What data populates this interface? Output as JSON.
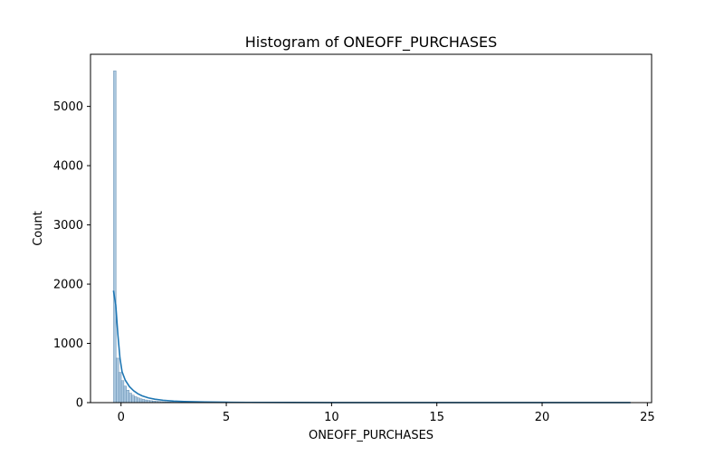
{
  "chart_data": {
    "type": "histogram",
    "title": "Histogram of ONEOFF_PURCHASES",
    "xlabel": "ONEOFF_PURCHASES",
    "ylabel": "Count",
    "xlim": [
      -1.45,
      25.2
    ],
    "ylim": [
      0,
      5880
    ],
    "xticks": [
      0,
      5,
      10,
      15,
      20,
      25
    ],
    "yticks": [
      0,
      1000,
      2000,
      3000,
      4000,
      5000
    ],
    "grid": false,
    "legend": "none",
    "colors": {
      "bar_fill": "#a9c6de",
      "bar_edge": "#4f7ea6",
      "kde_line": "#1f77b4"
    },
    "bins": {
      "start": -0.357,
      "width": 0.1235,
      "counts": [
        5600,
        750,
        510,
        370,
        280,
        210,
        160,
        125,
        100,
        80,
        65,
        55,
        45,
        38,
        32,
        27,
        23,
        20,
        17,
        15,
        13,
        11,
        10,
        9,
        8,
        7,
        6,
        5,
        5,
        4,
        4,
        3,
        3,
        3,
        2,
        2,
        2,
        2,
        2,
        1,
        1,
        1,
        1,
        1,
        1,
        1,
        1,
        1,
        1,
        1,
        1,
        1,
        1,
        1,
        1,
        1,
        1,
        1,
        1,
        1
      ]
    },
    "kde": {
      "x": [
        -0.36,
        -0.25,
        -0.15,
        -0.05,
        0.05,
        0.2,
        0.4,
        0.6,
        0.8,
        1.0,
        1.3,
        1.6,
        2.0,
        2.5,
        3.0,
        4.0,
        5.0,
        6.0,
        8.0,
        10.0,
        12.0,
        15.0,
        18.0,
        21.0,
        24.2
      ],
      "y": [
        1890,
        1650,
        1150,
        750,
        520,
        380,
        270,
        200,
        150,
        115,
        80,
        58,
        40,
        26,
        18,
        10,
        6,
        4,
        2.5,
        1.5,
        1,
        1,
        0.5,
        0.5,
        0.5
      ]
    }
  }
}
